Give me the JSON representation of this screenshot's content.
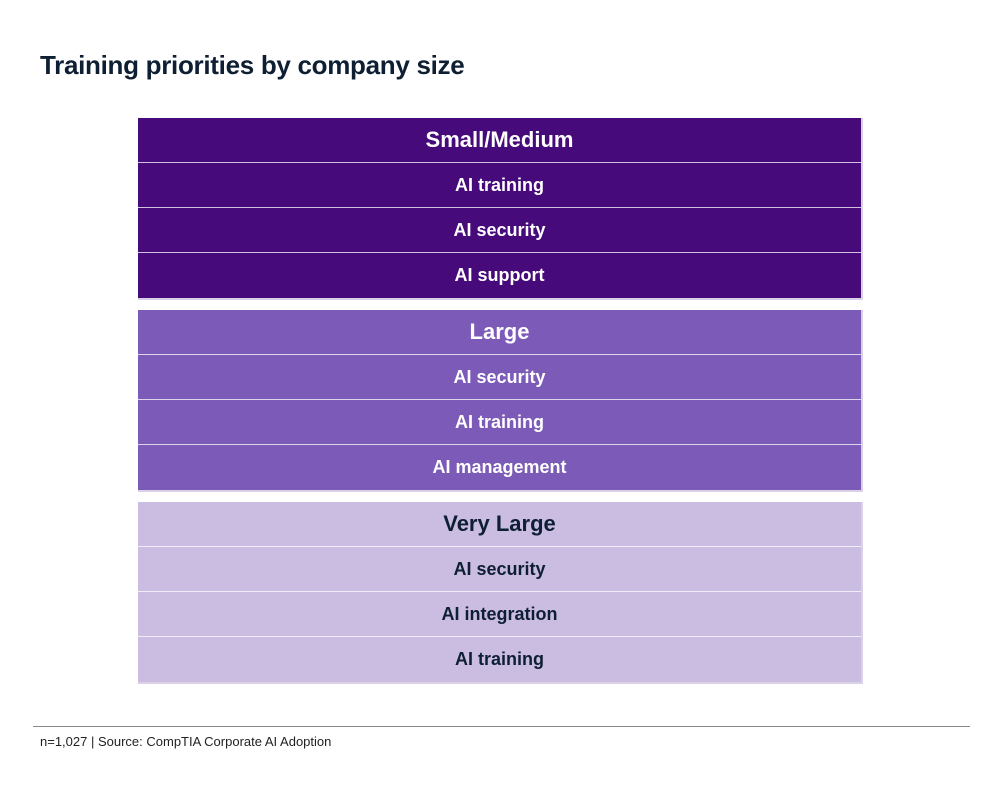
{
  "title": "Training priorities by company size",
  "chart_data": {
    "type": "table",
    "groups": [
      {
        "header": "Small/Medium",
        "items": [
          "AI training",
          "AI security",
          "AI support"
        ],
        "bg": "#460a7b",
        "fg": "#ffffff"
      },
      {
        "header": "Large",
        "items": [
          "AI security",
          "AI training",
          "AI management"
        ],
        "bg": "#7c5ab7",
        "fg": "#ffffff"
      },
      {
        "header": "Very Large",
        "items": [
          "AI security",
          "AI integration",
          "AI training"
        ],
        "bg": "#cbbde2",
        "fg": "#0e1f33"
      }
    ]
  },
  "footnote": "n=1,027 | Source: CompTIA Corporate AI Adoption"
}
